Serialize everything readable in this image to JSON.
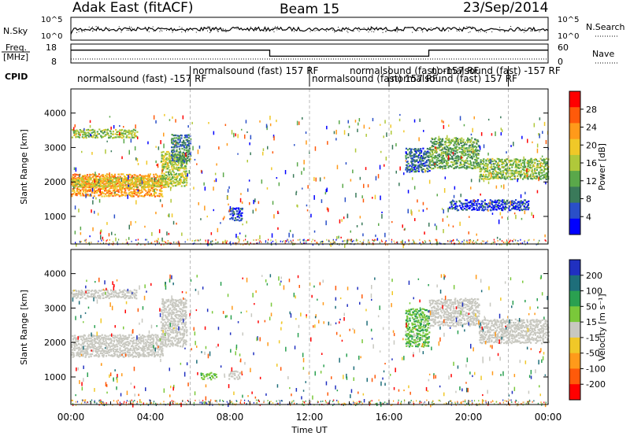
{
  "header": {
    "radar": "Adak East (fitACF)",
    "beam": "Beam 15",
    "date": "23/Sep/2014"
  },
  "status": {
    "nsky_label": "N.Sky",
    "nsky_ticks": [
      "10^5",
      "10^0"
    ],
    "nsearch_label": "N.Search",
    "nsearch_ticks": [
      "10^5",
      "10^0"
    ],
    "freq_label_1": "Freq.",
    "freq_label_2": "[MHz]",
    "freq_ticks": [
      "18",
      "8"
    ],
    "nave_label": "Nave",
    "nave_ticks": [
      "60",
      "0"
    ],
    "cpid_label": "CPID",
    "cpid_entries": [
      {
        "t": 0.2,
        "text": "normalsound (fast) -157 RF"
      },
      {
        "t": 6.0,
        "text": "normalsound (fast) 157 RF"
      },
      {
        "t": 12.0,
        "text": "normalsound (fast) 157 RF"
      },
      {
        "t": 13.9,
        "text": "normalsound (fast) -157 RF"
      },
      {
        "t": 16.0,
        "text": "normalsound (fast) 157 RF"
      },
      {
        "t": 18.0,
        "text": "normalsound (fast) -157 RF"
      }
    ],
    "cpid_marks": [
      6.0,
      12.0,
      16.0,
      22.0
    ],
    "freq_segments": [
      {
        "t0": 0,
        "t1": 10.0,
        "mhz": 14.8
      },
      {
        "t0": 10.0,
        "t1": 18.0,
        "mhz": 11.6
      },
      {
        "t0": 18.0,
        "t1": 24.0,
        "mhz": 14.8
      }
    ],
    "nave_level": 4
  },
  "chart_data": [
    {
      "type": "heatmap",
      "name": "power",
      "ylabel": "Slant Range [km]",
      "yticks": [
        1000,
        2000,
        3000,
        4000
      ],
      "ylim": [
        200,
        4700
      ],
      "xlim": [
        0,
        24
      ],
      "colorbar_label": "Power [dB]",
      "colorbar_ticks": [
        4,
        8,
        12,
        16,
        20,
        24,
        28
      ],
      "colorbar_range": [
        0,
        32
      ],
      "colors": [
        "#0000ff",
        "#2a4fc8",
        "#3a7a5a",
        "#5aa84a",
        "#b0c83a",
        "#f0c828",
        "#ff9a1a",
        "#ff5a0a",
        "#ff0000"
      ],
      "regions": [
        {
          "t0": 0.0,
          "t1": 4.6,
          "r0": 1600,
          "r1": 2250,
          "v": 26
        },
        {
          "t0": 0.0,
          "t1": 5.0,
          "r0": 1850,
          "r1": 2150,
          "v": 20
        },
        {
          "t0": 4.5,
          "t1": 5.8,
          "r0": 1900,
          "r1": 2900,
          "v": 18
        },
        {
          "t0": 0.0,
          "t1": 3.3,
          "r0": 3300,
          "r1": 3550,
          "v": 16
        },
        {
          "t0": 5.0,
          "t1": 6.0,
          "r0": 2600,
          "r1": 3400,
          "v": 10
        },
        {
          "t0": 7.9,
          "t1": 8.6,
          "r0": 900,
          "r1": 1300,
          "v": 6
        },
        {
          "t0": 16.8,
          "t1": 18.0,
          "r0": 2300,
          "r1": 3000,
          "v": 8
        },
        {
          "t0": 18.0,
          "t1": 20.5,
          "r0": 2400,
          "r1": 3300,
          "v": 14
        },
        {
          "t0": 20.5,
          "t1": 24.0,
          "r0": 2100,
          "r1": 2700,
          "v": 16
        },
        {
          "t0": 19.0,
          "t1": 23.0,
          "r0": 1200,
          "r1": 1500,
          "v": 5
        }
      ]
    },
    {
      "type": "heatmap",
      "name": "velocity",
      "ylabel": "Slant Range [km]",
      "xlabel": "Time UT",
      "yticks": [
        1000,
        2000,
        3000,
        4000
      ],
      "ylim": [
        200,
        4700
      ],
      "xlim": [
        0,
        24
      ],
      "xtick_labels": [
        "00:00",
        "04:00",
        "08:00",
        "12:00",
        "16:00",
        "20:00",
        "00:00"
      ],
      "colorbar_label": "Velocity [m s⁻¹]",
      "colorbar_ticks": [
        "200",
        "100",
        "50",
        "15",
        "-15",
        "-50",
        "-100",
        "-200"
      ],
      "colors": [
        "#2030c0",
        "#1e6e7a",
        "#2aa050",
        "#7ac83a",
        "#c8c8c0",
        "#f0c828",
        "#ff9a1a",
        "#ff5a0a",
        "#ff0000"
      ],
      "ground_scatter_color": "#c8c8c0",
      "regions": [
        {
          "t0": 0.0,
          "t1": 4.6,
          "r0": 1600,
          "r1": 2250,
          "v": 0
        },
        {
          "t0": 4.5,
          "t1": 5.8,
          "r0": 1900,
          "r1": 3300,
          "v": 0
        },
        {
          "t0": 0.0,
          "t1": 3.3,
          "r0": 3300,
          "r1": 3550,
          "v": 0
        },
        {
          "t0": 6.5,
          "t1": 7.3,
          "r0": 950,
          "r1": 1150,
          "v": 40
        },
        {
          "t0": 7.9,
          "t1": 8.5,
          "r0": 950,
          "r1": 1200,
          "v": 0
        },
        {
          "t0": 16.8,
          "t1": 18.0,
          "r0": 1900,
          "r1": 3000,
          "v": 40
        },
        {
          "t0": 18.0,
          "t1": 20.5,
          "r0": 2500,
          "r1": 3300,
          "v": 0
        },
        {
          "t0": 20.5,
          "t1": 24.0,
          "r0": 2000,
          "r1": 2700,
          "v": 0
        }
      ]
    }
  ]
}
